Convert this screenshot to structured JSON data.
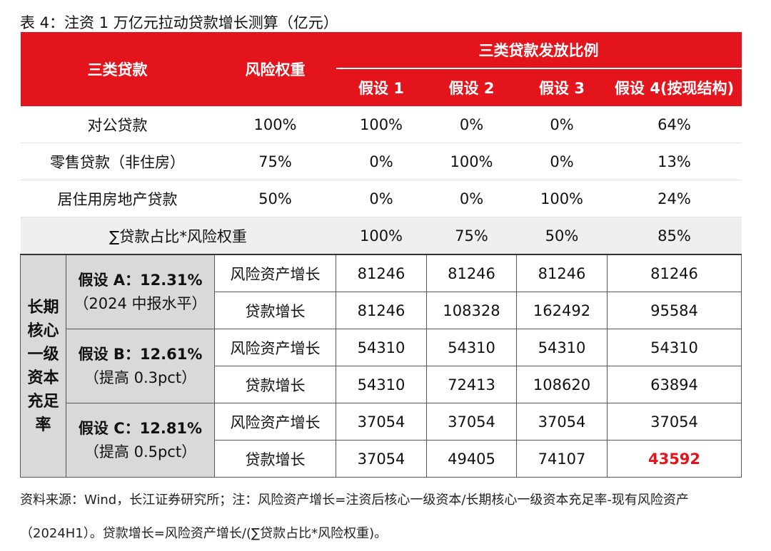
{
  "title": "表 4：注资 1 万亿元拉动贷款增长测算（亿元）",
  "header": {
    "loan_type": "三类贷款",
    "risk_weight": "风险权重",
    "group": "三类贷款发放比例",
    "assumptions": [
      "假设 1",
      "假设 2",
      "假设 3",
      "假设 4(按现结构)"
    ]
  },
  "loan_rows": [
    [
      "对公贷款",
      "100%",
      "100%",
      "0%",
      "0%",
      "64%"
    ],
    [
      "零售贷款（非住房）",
      "75%",
      "0%",
      "100%",
      "0%",
      "13%"
    ],
    [
      "居住用房地产贷款",
      "50%",
      "0%",
      "0%",
      "100%",
      "24%"
    ]
  ],
  "sum_row": {
    "label": "∑贷款占比*风险权重",
    "values": [
      "100%",
      "75%",
      "50%",
      "85%"
    ]
  },
  "side_label": "长期核心一级资本充足率",
  "scenarios": [
    {
      "name": "假设 A：12.31%",
      "note": "（2024 中报水平）",
      "rows": [
        {
          "label": "风险资产增长",
          "values": [
            "81246",
            "81246",
            "81246",
            "81246"
          ]
        },
        {
          "label": "贷款增长",
          "values": [
            "81246",
            "108328",
            "162492",
            "95584"
          ]
        }
      ]
    },
    {
      "name": "假设 B：12.61%",
      "note": "（提高 0.3pct）",
      "rows": [
        {
          "label": "风险资产增长",
          "values": [
            "54310",
            "54310",
            "54310",
            "54310"
          ]
        },
        {
          "label": "贷款增长",
          "values": [
            "54310",
            "72413",
            "108620",
            "63894"
          ]
        }
      ]
    },
    {
      "name": "假设 C：12.81%",
      "note": "（提高 0.5pct）",
      "rows": [
        {
          "label": "风险资产增长",
          "values": [
            "37054",
            "37054",
            "37054",
            "37054"
          ]
        },
        {
          "label": "贷款增长",
          "values": [
            "37054",
            "49405",
            "74107",
            "43592"
          ]
        }
      ]
    }
  ],
  "note": "资料来源：Wind，长江证券研究所；注：风险资产增长=注资后核心一级资本/长期核心一级资本充足率-现有风险资产（2024H1）。贷款增长=风险资产增长/(∑贷款占比*风险权重)。"
}
